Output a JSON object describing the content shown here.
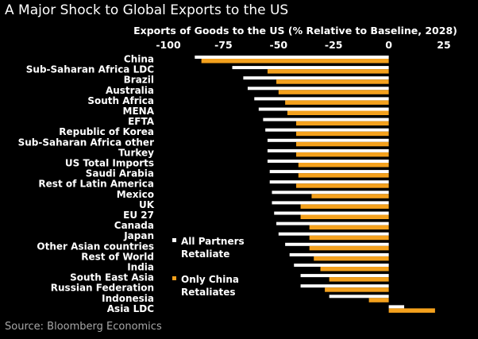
{
  "title": "A Major Shock to Global Exports to the US",
  "source": "Source: Bloomberg Economics",
  "colors": {
    "background": "#000000",
    "all_partners": "#ffffff",
    "only_china": "#f4a11d",
    "text": "#ffffff",
    "source_text": "#a8a8a8"
  },
  "chart_data": {
    "type": "bar",
    "orientation": "horizontal",
    "title": "Exports of Goods to the US (% Relative to Baseline, 2028)",
    "xlim": [
      -100,
      25
    ],
    "xticks": [
      -100,
      -75,
      -50,
      -25,
      0,
      25
    ],
    "xtick_labels": [
      "-100",
      "-75",
      "-50",
      "-25",
      "0",
      "25"
    ],
    "grid": false,
    "legend_position": "lower-center",
    "categories": [
      "China",
      "Sub-Saharan Africa LDC",
      "Brazil",
      "Australia",
      "South Africa",
      "MENA",
      "EFTA",
      "Republic of Korea",
      "Sub-Saharan Africa other",
      "Turkey",
      "US Total Imports",
      "Saudi Arabia",
      "Rest of Latin America",
      "Mexico",
      "UK",
      "EU 27",
      "Canada",
      "Japan",
      "Other Asian countries",
      "Rest of World",
      "India",
      "South East Asia",
      "Russian Federation",
      "Indonesia",
      "Asia LDC"
    ],
    "series": [
      {
        "name": "All Partners Retaliate",
        "values": [
          -88,
          -71,
          -66,
          -64,
          -61,
          -59,
          -57,
          -56,
          -55,
          -55,
          -55,
          -54,
          -54,
          -53,
          -53,
          -52,
          -51,
          -50,
          -47,
          -45,
          -43,
          -40,
          -40,
          -27,
          7
        ]
      },
      {
        "name": "Only China Retaliates",
        "values": [
          -85,
          -55,
          -51,
          -50,
          -47,
          -46,
          -42,
          -42,
          -42,
          -42,
          -41,
          -41,
          -42,
          -35,
          -40,
          -40,
          -36,
          -36,
          -36,
          -34,
          -31,
          -27,
          -29,
          -9,
          21
        ]
      }
    ]
  },
  "legend": [
    {
      "label": "All Partners Retaliate",
      "color": "#ffffff"
    },
    {
      "label": "Only China Retaliates",
      "color": "#f4a11d"
    }
  ]
}
